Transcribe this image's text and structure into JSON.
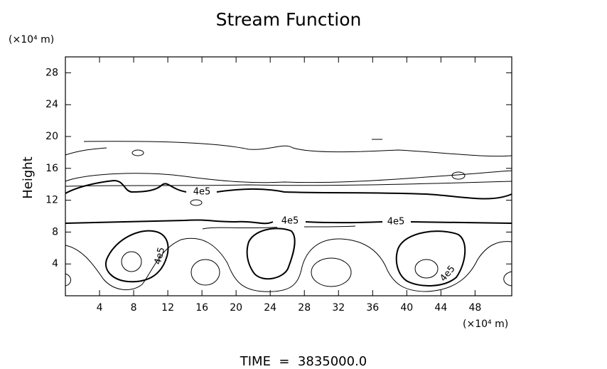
{
  "chart_data": {
    "type": "contour",
    "title": "Stream Function",
    "y_label": "Height",
    "y_unit": "(×10⁴ m)",
    "x_unit": "(×10⁴ m)",
    "xlim": [
      0,
      52.3
    ],
    "ylim": [
      0,
      30
    ],
    "xticks": [
      4,
      8,
      12,
      16,
      20,
      24,
      28,
      32,
      36,
      40,
      44,
      48
    ],
    "yticks": [
      4,
      8,
      12,
      16,
      20,
      24,
      28
    ],
    "contour_labels": [
      "4e5",
      "4e5",
      "4e5",
      "4e5",
      "4e5"
    ],
    "footer": "TIME  =  3835000.0"
  }
}
